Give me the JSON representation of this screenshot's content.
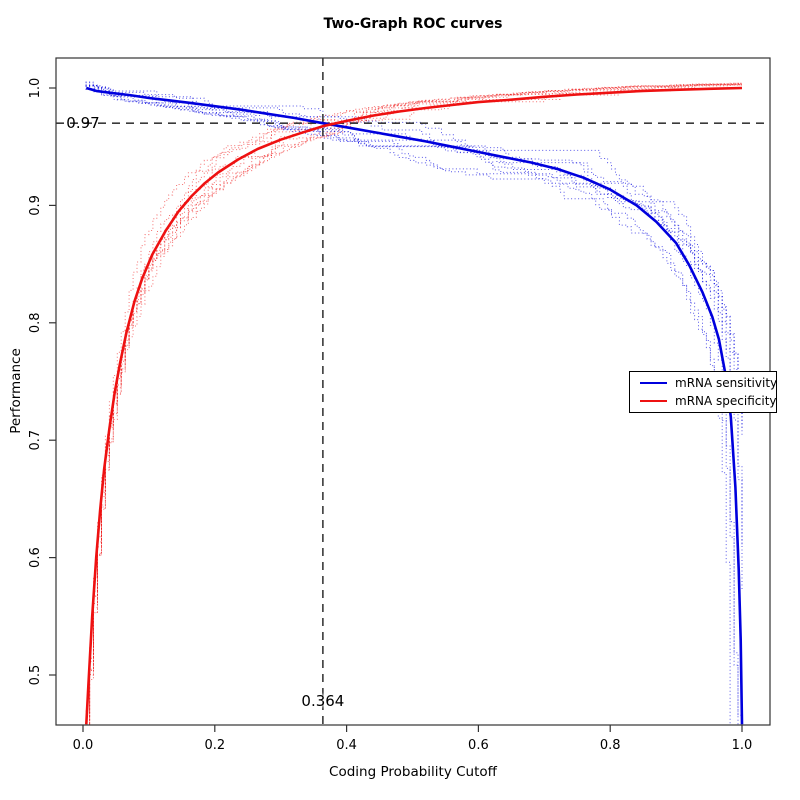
{
  "chart_data": {
    "type": "line",
    "title": "Two-Graph ROC curves",
    "xlabel": "Coding Probability Cutoff",
    "ylabel": "Performance",
    "xlim": [
      -0.04,
      1.04
    ],
    "ylim": [
      0.457,
      1.026
    ],
    "grid": false,
    "x_axis": {
      "tick_values": [
        0.0,
        0.2,
        0.4,
        0.6,
        0.8,
        1.0
      ],
      "tick_labels": [
        "0.0",
        "0.2",
        "0.4",
        "0.6",
        "0.8",
        "1.0"
      ]
    },
    "y_axis": {
      "tick_values": [
        0.5,
        0.6,
        0.7,
        0.8,
        0.9,
        1.0
      ],
      "tick_labels": [
        "0.5",
        "0.6",
        "0.7",
        "0.8",
        "0.9",
        "1.0"
      ]
    },
    "legend": {
      "position": "right-middle",
      "entries": [
        {
          "label": "mRNA sensitivity",
          "color": "#0000dd"
        },
        {
          "label": "mRNA specificity",
          "color": "#ee1111"
        }
      ]
    },
    "annotations": {
      "hline": {
        "value": 0.97,
        "label": "0.97"
      },
      "vline": {
        "value": 0.364,
        "label": "0.364"
      },
      "dash_color": "#3a3a3a"
    },
    "series": [
      {
        "name": "mRNA sensitivity",
        "color": "#0000dd",
        "role": "mean",
        "direction": "decreasing",
        "points": [
          [
            0.005,
            1.0
          ],
          [
            0.02,
            0.9975
          ],
          [
            0.04,
            0.996
          ],
          [
            0.07,
            0.994
          ],
          [
            0.1,
            0.9915
          ],
          [
            0.13,
            0.9895
          ],
          [
            0.16,
            0.9875
          ],
          [
            0.2,
            0.9845
          ],
          [
            0.24,
            0.9815
          ],
          [
            0.28,
            0.978
          ],
          [
            0.32,
            0.9745
          ],
          [
            0.364,
            0.97
          ],
          [
            0.4,
            0.9665
          ],
          [
            0.44,
            0.9625
          ],
          [
            0.48,
            0.9585
          ],
          [
            0.52,
            0.9545
          ],
          [
            0.56,
            0.95
          ],
          [
            0.6,
            0.9455
          ],
          [
            0.64,
            0.941
          ],
          [
            0.68,
            0.9365
          ],
          [
            0.72,
            0.931
          ],
          [
            0.76,
            0.9235
          ],
          [
            0.8,
            0.9135
          ],
          [
            0.84,
            0.9
          ],
          [
            0.87,
            0.886
          ],
          [
            0.9,
            0.868
          ],
          [
            0.92,
            0.849
          ],
          [
            0.94,
            0.826
          ],
          [
            0.955,
            0.805
          ],
          [
            0.965,
            0.786
          ],
          [
            0.975,
            0.756
          ],
          [
            0.983,
            0.72
          ],
          [
            0.99,
            0.66
          ],
          [
            0.995,
            0.59
          ],
          [
            0.998,
            0.53
          ],
          [
            1.0,
            0.458
          ]
        ]
      },
      {
        "name": "mRNA specificity",
        "color": "#ee1111",
        "role": "mean",
        "direction": "increasing",
        "points": [
          [
            0.005,
            0.458
          ],
          [
            0.008,
            0.49
          ],
          [
            0.014,
            0.55
          ],
          [
            0.02,
            0.6
          ],
          [
            0.026,
            0.64
          ],
          [
            0.032,
            0.675
          ],
          [
            0.04,
            0.71
          ],
          [
            0.048,
            0.74
          ],
          [
            0.056,
            0.765
          ],
          [
            0.066,
            0.792
          ],
          [
            0.078,
            0.818
          ],
          [
            0.09,
            0.838
          ],
          [
            0.105,
            0.858
          ],
          [
            0.125,
            0.878
          ],
          [
            0.145,
            0.895
          ],
          [
            0.165,
            0.908
          ],
          [
            0.185,
            0.919
          ],
          [
            0.205,
            0.928
          ],
          [
            0.235,
            0.939
          ],
          [
            0.265,
            0.948
          ],
          [
            0.3,
            0.956
          ],
          [
            0.33,
            0.9615
          ],
          [
            0.364,
            0.9675
          ],
          [
            0.4,
            0.972
          ],
          [
            0.44,
            0.9765
          ],
          [
            0.48,
            0.98
          ],
          [
            0.52,
            0.983
          ],
          [
            0.56,
            0.9855
          ],
          [
            0.6,
            0.988
          ],
          [
            0.65,
            0.99
          ],
          [
            0.7,
            0.9925
          ],
          [
            0.75,
            0.9945
          ],
          [
            0.8,
            0.996
          ],
          [
            0.85,
            0.9975
          ],
          [
            0.9,
            0.9985
          ],
          [
            0.95,
            0.9993
          ],
          [
            1.0,
            1.0
          ]
        ]
      }
    ],
    "replicates": {
      "per_series": 9,
      "line_style": "dotted step curves",
      "description": "thin dotted cross-validation replicate curves scattered around each mean curve"
    }
  }
}
